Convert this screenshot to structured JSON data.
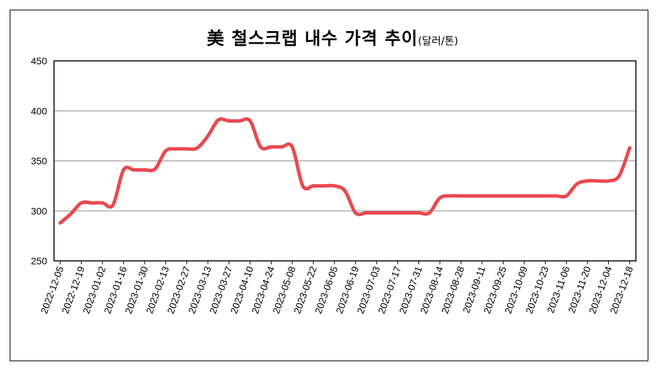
{
  "chart_data": {
    "type": "line",
    "title": "美 철스크랩 내수 가격 추이",
    "unit": "(달러/톤)",
    "xlabel": "",
    "ylabel": "",
    "ylim": [
      250,
      450
    ],
    "yticks": [
      250,
      300,
      350,
      400,
      450
    ],
    "grid": "horizontal",
    "legend": "none",
    "line_color": "#e8494f",
    "x_tick_labels": [
      "2022-12-05",
      "2022-12-19",
      "2023-01-02",
      "2023-01-16",
      "2023-01-30",
      "2023-02-13",
      "2023-02-27",
      "2023-03-13",
      "2023-03-27",
      "2023-04-10",
      "2023-04-24",
      "2023-05-08",
      "2023-05-22",
      "2023-06-05",
      "2023-06-19",
      "2023-07-03",
      "2023-07-17",
      "2023-07-31",
      "2023-08-14",
      "2023-08-28",
      "2023-09-11",
      "2023-09-25",
      "2023-10-09",
      "2023-10-23",
      "2023-11-06",
      "2023-11-20",
      "2023-12-04",
      "2023-12-18"
    ],
    "series": [
      {
        "x": [
          "2022-12-05",
          "2022-12-12",
          "2022-12-19",
          "2022-12-26",
          "2023-01-02",
          "2023-01-09",
          "2023-01-16",
          "2023-01-23",
          "2023-01-30",
          "2023-02-06",
          "2023-02-13",
          "2023-02-20",
          "2023-02-27",
          "2023-03-06",
          "2023-03-13",
          "2023-03-20",
          "2023-03-27",
          "2023-04-03",
          "2023-04-10",
          "2023-04-17",
          "2023-04-24",
          "2023-05-01",
          "2023-05-08",
          "2023-05-15",
          "2023-05-22",
          "2023-05-29",
          "2023-06-05",
          "2023-06-12",
          "2023-06-19",
          "2023-06-26",
          "2023-07-03",
          "2023-07-10",
          "2023-07-17",
          "2023-07-24",
          "2023-07-31",
          "2023-08-07",
          "2023-08-14",
          "2023-08-21",
          "2023-08-28",
          "2023-09-04",
          "2023-09-11",
          "2023-09-18",
          "2023-09-25",
          "2023-10-02",
          "2023-10-09",
          "2023-10-16",
          "2023-10-23",
          "2023-10-30",
          "2023-11-06",
          "2023-11-13",
          "2023-11-20",
          "2023-11-27",
          "2023-12-04",
          "2023-12-11",
          "2023-12-18"
        ],
        "values": [
          288,
          297,
          308,
          308,
          308,
          306,
          341,
          341,
          341,
          342,
          360,
          362,
          362,
          363,
          375,
          391,
          390,
          390,
          390,
          364,
          364,
          364,
          364,
          325,
          325,
          325,
          325,
          320,
          298,
          298,
          298,
          298,
          298,
          298,
          298,
          298,
          313,
          315,
          315,
          315,
          315,
          315,
          315,
          315,
          315,
          315,
          315,
          315,
          315,
          327,
          330,
          330,
          330,
          335,
          363
        ]
      }
    ]
  }
}
